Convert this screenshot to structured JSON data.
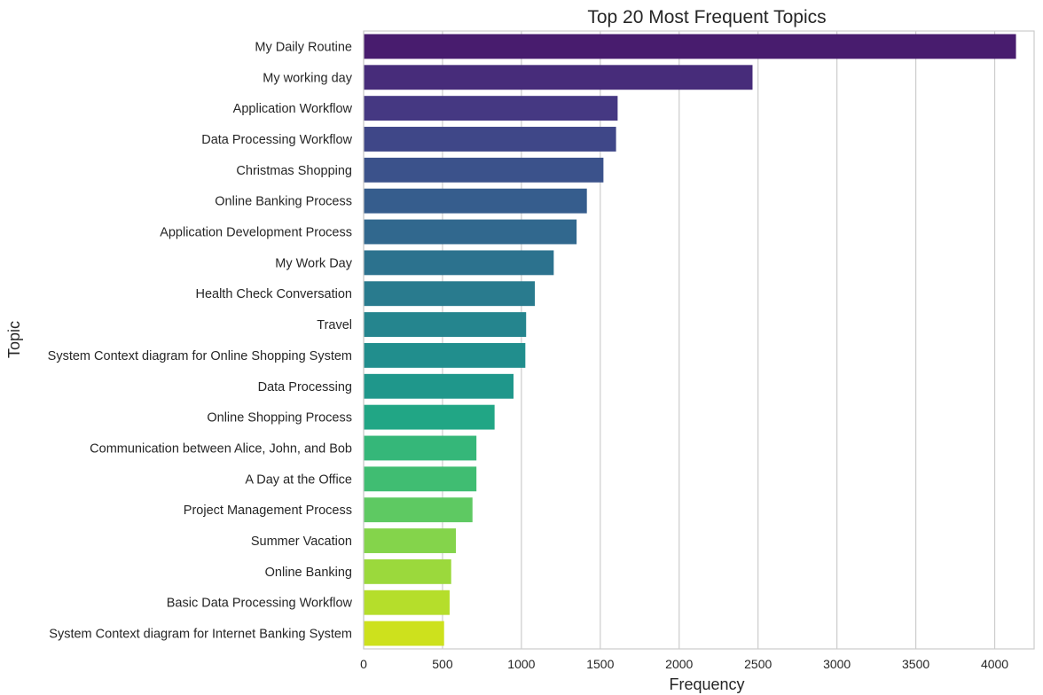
{
  "chart_data": {
    "type": "bar",
    "orientation": "horizontal",
    "title": "Top 20 Most Frequent Topics",
    "xlabel": "Frequency",
    "ylabel": "Topic",
    "xlim": [
      0,
      4250
    ],
    "xticks": [
      0,
      500,
      1000,
      1500,
      2000,
      2500,
      3000,
      3500,
      4000
    ],
    "grid": "vertical",
    "palette": "viridis",
    "categories": [
      "My Daily Routine",
      "My working day",
      "Application Workflow",
      "Data Processing Workflow",
      "Christmas Shopping",
      "Online Banking Process",
      "Application Development Process",
      "My Work Day",
      "Health Check Conversation",
      "Travel",
      "System Context diagram for Online Shopping System",
      "Data Processing",
      "Online Shopping Process",
      "Communication between Alice, John, and Bob",
      "A Day at the Office",
      "Project Management Process",
      "Summer Vacation",
      "Online Banking",
      "Basic Data Processing Workflow",
      "System Context diagram for Internet Banking System"
    ],
    "values": [
      4135,
      2465,
      1610,
      1600,
      1520,
      1415,
      1350,
      1205,
      1085,
      1030,
      1025,
      950,
      830,
      715,
      715,
      690,
      585,
      555,
      545,
      510
    ],
    "colors": [
      "#481c6e",
      "#472c7a",
      "#453882",
      "#3f4788",
      "#3b528b",
      "#365d8d",
      "#31688e",
      "#2c728e",
      "#297b8e",
      "#25858e",
      "#218e8d",
      "#1f978b",
      "#21a685",
      "#35b779",
      "#40bd72",
      "#5ec962",
      "#84d44b",
      "#9bd93c",
      "#b5de2b",
      "#cde11d"
    ]
  }
}
